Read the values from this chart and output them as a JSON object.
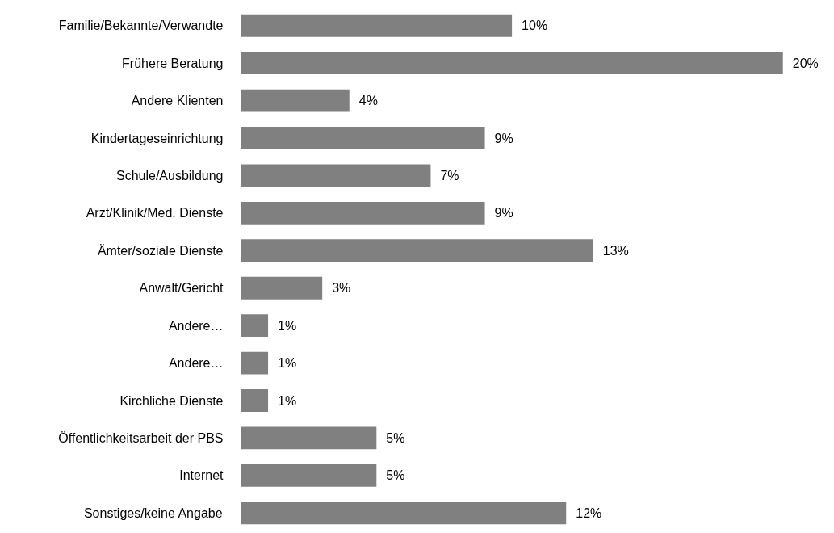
{
  "chart_data": {
    "type": "bar",
    "orientation": "horizontal",
    "categories": [
      "Familie/Bekannte/Verwandte",
      "Frühere Beratung",
      "Andere Klienten",
      "Kindertageseinrichtung",
      "Schule/Ausbildung",
      "Arzt/Klinik/Med. Dienste",
      "Ämter/soziale Dienste",
      "Anwalt/Gericht",
      "Andere…",
      "Andere…",
      "Kirchliche Dienste",
      "Öffentlichkeitsarbeit der PBS",
      "Internet",
      "Sonstiges/keine Angabe"
    ],
    "values": [
      10,
      20,
      4,
      9,
      7,
      9,
      13,
      3,
      1,
      1,
      1,
      5,
      5,
      12
    ],
    "value_labels": [
      "10%",
      "20%",
      "4%",
      "9%",
      "7%",
      "9%",
      "13%",
      "3%",
      "1%",
      "1%",
      "1%",
      "5%",
      "5%",
      "12%"
    ],
    "color": "#808080"
  }
}
